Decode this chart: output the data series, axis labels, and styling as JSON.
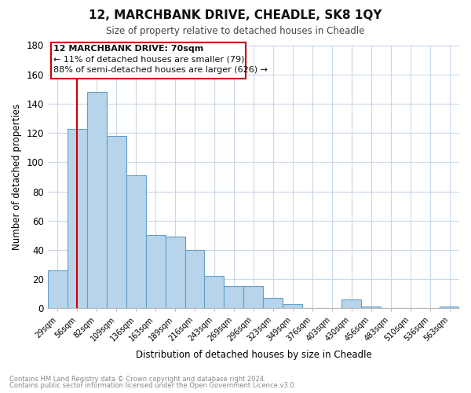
{
  "title": "12, MARCHBANK DRIVE, CHEADLE, SK8 1QY",
  "subtitle": "Size of property relative to detached houses in Cheadle",
  "xlabel": "Distribution of detached houses by size in Cheadle",
  "ylabel": "Number of detached properties",
  "categories": [
    "29sqm",
    "56sqm",
    "82sqm",
    "109sqm",
    "136sqm",
    "163sqm",
    "189sqm",
    "216sqm",
    "243sqm",
    "269sqm",
    "296sqm",
    "323sqm",
    "349sqm",
    "376sqm",
    "403sqm",
    "430sqm",
    "456sqm",
    "483sqm",
    "510sqm",
    "536sqm",
    "563sqm"
  ],
  "values": [
    26,
    123,
    148,
    118,
    91,
    50,
    49,
    40,
    22,
    15,
    15,
    7,
    3,
    0,
    0,
    6,
    1,
    0,
    0,
    0,
    1
  ],
  "bar_color": "#b8d4ea",
  "bar_edge_color": "#5fa0c8",
  "vline_color": "#cc0000",
  "ylim": [
    0,
    180
  ],
  "yticks": [
    0,
    20,
    40,
    60,
    80,
    100,
    120,
    140,
    160,
    180
  ],
  "annotation_line1": "12 MARCHBANK DRIVE: 70sqm",
  "annotation_line2": "← 11% of detached houses are smaller (79)",
  "annotation_line3": "88% of semi-detached houses are larger (626) →",
  "footer_line1": "Contains HM Land Registry data © Crown copyright and database right 2024.",
  "footer_line2": "Contains public sector information licensed under the Open Government Licence v3.0.",
  "background_color": "#ffffff",
  "grid_color": "#c8d8e8",
  "vline_bar_index": 1
}
